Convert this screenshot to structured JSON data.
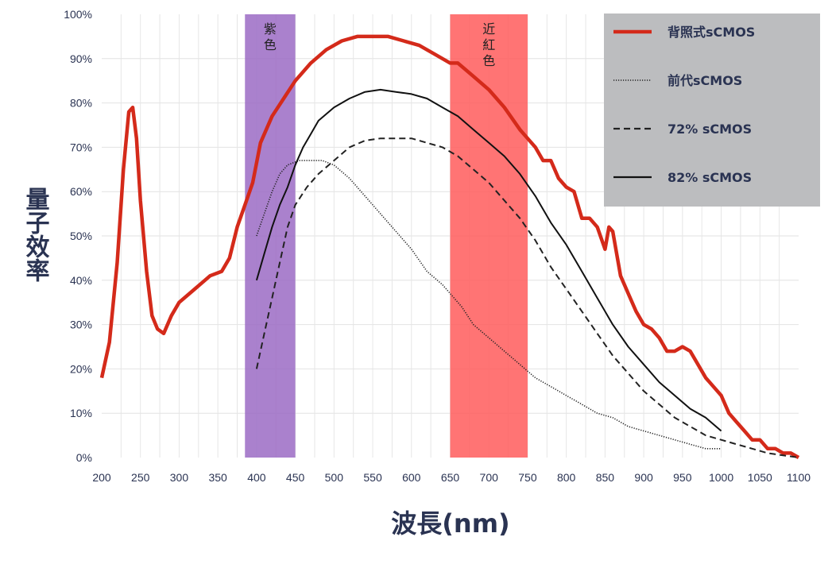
{
  "chart_data": {
    "type": "line",
    "xlabel": "波長(nm)",
    "ylabel": "量子效率",
    "xlim": [
      200,
      1100
    ],
    "ylim": [
      0,
      100
    ],
    "x_ticks": [
      "200",
      "250",
      "300",
      "350",
      "400",
      "450",
      "500",
      "550",
      "600",
      "650",
      "700",
      "750",
      "800",
      "850",
      "900",
      "950",
      "1000",
      "1050",
      "1100"
    ],
    "y_ticks": [
      "0%",
      "10%",
      "20%",
      "30%",
      "40%",
      "50%",
      "60%",
      "70%",
      "80%",
      "90%",
      "100%"
    ],
    "grid": true,
    "legend_position": "top-right",
    "bands": [
      {
        "label": "紫色",
        "x_start": 385,
        "x_end": 450,
        "color": "#9b6bc4"
      },
      {
        "label": "近紅色",
        "x_start": 650,
        "x_end": 750,
        "color": "#ff5c5c"
      }
    ],
    "series": [
      {
        "name": "背照式sCMOS",
        "color": "#d42a1a",
        "style": "solid",
        "points": [
          [
            200,
            18
          ],
          [
            210,
            26
          ],
          [
            220,
            44
          ],
          [
            228,
            65
          ],
          [
            235,
            78
          ],
          [
            240,
            79
          ],
          [
            245,
            72
          ],
          [
            250,
            58
          ],
          [
            258,
            42
          ],
          [
            265,
            32
          ],
          [
            272,
            29
          ],
          [
            280,
            28
          ],
          [
            290,
            32
          ],
          [
            300,
            35
          ],
          [
            320,
            38
          ],
          [
            340,
            41
          ],
          [
            355,
            42
          ],
          [
            365,
            45
          ],
          [
            375,
            52
          ],
          [
            385,
            57
          ],
          [
            395,
            62
          ],
          [
            405,
            71
          ],
          [
            420,
            77
          ],
          [
            435,
            81
          ],
          [
            450,
            85
          ],
          [
            470,
            89
          ],
          [
            490,
            92
          ],
          [
            510,
            94
          ],
          [
            530,
            95
          ],
          [
            550,
            95
          ],
          [
            570,
            95
          ],
          [
            590,
            94
          ],
          [
            610,
            93
          ],
          [
            630,
            91
          ],
          [
            650,
            89
          ],
          [
            660,
            89
          ],
          [
            680,
            86
          ],
          [
            700,
            83
          ],
          [
            720,
            79
          ],
          [
            740,
            74
          ],
          [
            750,
            72
          ],
          [
            760,
            70
          ],
          [
            770,
            67
          ],
          [
            780,
            67
          ],
          [
            790,
            63
          ],
          [
            800,
            61
          ],
          [
            810,
            60
          ],
          [
            820,
            54
          ],
          [
            830,
            54
          ],
          [
            840,
            52
          ],
          [
            850,
            47
          ],
          [
            855,
            52
          ],
          [
            860,
            51
          ],
          [
            870,
            41
          ],
          [
            880,
            37
          ],
          [
            890,
            33
          ],
          [
            900,
            30
          ],
          [
            910,
            29
          ],
          [
            920,
            27
          ],
          [
            930,
            24
          ],
          [
            940,
            24
          ],
          [
            950,
            25
          ],
          [
            960,
            24
          ],
          [
            970,
            21
          ],
          [
            980,
            18
          ],
          [
            990,
            16
          ],
          [
            1000,
            14
          ],
          [
            1010,
            10
          ],
          [
            1020,
            8
          ],
          [
            1030,
            6
          ],
          [
            1040,
            4
          ],
          [
            1050,
            4
          ],
          [
            1060,
            2
          ],
          [
            1070,
            2
          ],
          [
            1080,
            1
          ],
          [
            1090,
            1
          ],
          [
            1100,
            0
          ]
        ]
      },
      {
        "name": "前代sCMOS",
        "color": "#222222",
        "style": "dotted",
        "points": [
          [
            400,
            50
          ],
          [
            410,
            55
          ],
          [
            420,
            60
          ],
          [
            430,
            64
          ],
          [
            440,
            66
          ],
          [
            455,
            67
          ],
          [
            470,
            67
          ],
          [
            485,
            67
          ],
          [
            500,
            66
          ],
          [
            520,
            63
          ],
          [
            540,
            59
          ],
          [
            560,
            55
          ],
          [
            580,
            51
          ],
          [
            600,
            47
          ],
          [
            620,
            42
          ],
          [
            640,
            39
          ],
          [
            650,
            37
          ],
          [
            665,
            34
          ],
          [
            680,
            30
          ],
          [
            700,
            27
          ],
          [
            720,
            24
          ],
          [
            740,
            21
          ],
          [
            760,
            18
          ],
          [
            780,
            16
          ],
          [
            800,
            14
          ],
          [
            820,
            12
          ],
          [
            840,
            10
          ],
          [
            860,
            9
          ],
          [
            880,
            7
          ],
          [
            900,
            6
          ],
          [
            920,
            5
          ],
          [
            940,
            4
          ],
          [
            960,
            3
          ],
          [
            980,
            2
          ],
          [
            1000,
            2
          ]
        ]
      },
      {
        "name": "72% sCMOS",
        "color": "#222222",
        "style": "dashed",
        "points": [
          [
            400,
            20
          ],
          [
            410,
            28
          ],
          [
            420,
            36
          ],
          [
            430,
            44
          ],
          [
            440,
            52
          ],
          [
            450,
            57
          ],
          [
            465,
            61
          ],
          [
            480,
            64
          ],
          [
            500,
            67
          ],
          [
            520,
            70
          ],
          [
            540,
            71.5
          ],
          [
            560,
            72
          ],
          [
            580,
            72
          ],
          [
            600,
            72
          ],
          [
            620,
            71
          ],
          [
            640,
            70
          ],
          [
            660,
            68
          ],
          [
            680,
            65
          ],
          [
            700,
            62
          ],
          [
            720,
            58
          ],
          [
            740,
            54
          ],
          [
            760,
            49
          ],
          [
            780,
            43
          ],
          [
            800,
            38
          ],
          [
            820,
            33
          ],
          [
            840,
            28
          ],
          [
            860,
            23
          ],
          [
            880,
            19
          ],
          [
            900,
            15
          ],
          [
            920,
            12
          ],
          [
            940,
            9
          ],
          [
            960,
            7
          ],
          [
            980,
            5
          ],
          [
            1000,
            4
          ],
          [
            1020,
            3
          ],
          [
            1040,
            2
          ],
          [
            1060,
            1
          ],
          [
            1080,
            0.5
          ],
          [
            1100,
            0
          ]
        ]
      },
      {
        "name": "82% sCMOS",
        "color": "#111111",
        "style": "solid",
        "points": [
          [
            400,
            40
          ],
          [
            410,
            46
          ],
          [
            420,
            52
          ],
          [
            430,
            57
          ],
          [
            440,
            61
          ],
          [
            450,
            66
          ],
          [
            460,
            70
          ],
          [
            470,
            73
          ],
          [
            480,
            76
          ],
          [
            500,
            79
          ],
          [
            520,
            81
          ],
          [
            540,
            82.5
          ],
          [
            560,
            83
          ],
          [
            580,
            82.5
          ],
          [
            600,
            82
          ],
          [
            620,
            81
          ],
          [
            640,
            79
          ],
          [
            660,
            77
          ],
          [
            680,
            74
          ],
          [
            700,
            71
          ],
          [
            720,
            68
          ],
          [
            740,
            64
          ],
          [
            760,
            59
          ],
          [
            780,
            53
          ],
          [
            800,
            48
          ],
          [
            820,
            42
          ],
          [
            840,
            36
          ],
          [
            860,
            30
          ],
          [
            880,
            25
          ],
          [
            900,
            21
          ],
          [
            920,
            17
          ],
          [
            940,
            14
          ],
          [
            960,
            11
          ],
          [
            980,
            9
          ],
          [
            1000,
            6
          ]
        ]
      }
    ]
  }
}
